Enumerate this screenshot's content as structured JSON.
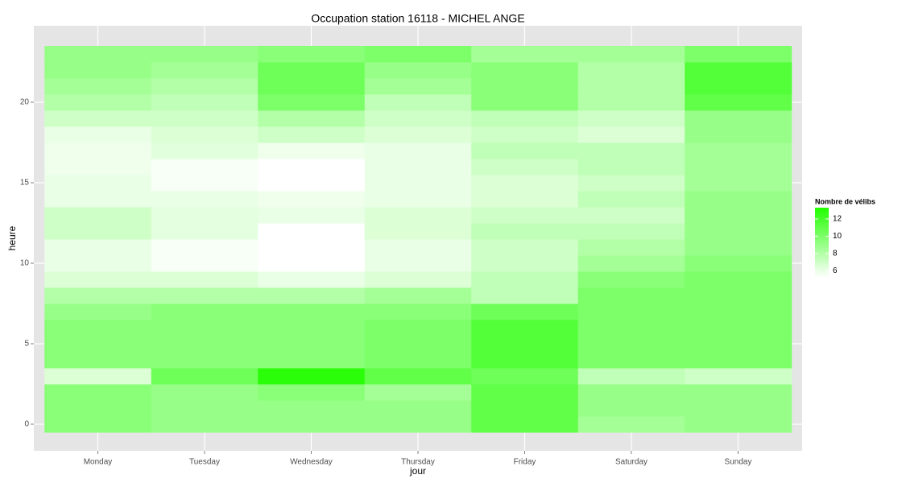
{
  "chart_data": {
    "type": "heatmap",
    "title": "Occupation station 16118 - MICHEL ANGE",
    "xlabel": "jour",
    "ylabel": "heure",
    "categories": [
      "Monday",
      "Tuesday",
      "Wednesday",
      "Thursday",
      "Friday",
      "Saturday",
      "Sunday"
    ],
    "y": [
      0,
      1,
      2,
      3,
      4,
      5,
      6,
      7,
      8,
      9,
      10,
      11,
      12,
      13,
      14,
      15,
      16,
      17,
      18,
      19,
      20,
      21,
      22,
      23
    ],
    "values": [
      [
        9.5,
        9.5,
        9.5,
        6.5,
        9.5,
        9.5,
        9.5,
        9,
        8,
        6.5,
        6,
        6,
        7,
        7,
        6,
        6,
        5.8,
        5.8,
        6,
        7,
        8,
        8.5,
        9,
        9
      ],
      [
        9,
        9,
        9,
        10.5,
        9.5,
        9.5,
        9.5,
        9.5,
        8,
        6.5,
        5.5,
        5.5,
        6.2,
        6.2,
        6,
        5.5,
        5.5,
        6.3,
        6.5,
        7,
        7.5,
        8,
        8.5,
        9
      ],
      [
        9,
        9,
        9.5,
        13,
        9.5,
        9.5,
        9.5,
        9.5,
        8,
        6,
        5,
        5,
        5,
        6,
        5.8,
        5.2,
        5.2,
        5.8,
        7,
        8,
        10,
        10.5,
        10.5,
        9.5
      ],
      [
        9,
        9,
        8.5,
        11,
        10,
        10,
        10,
        9.5,
        8.5,
        6.5,
        6,
        6,
        6.5,
        6.5,
        6,
        6,
        6,
        6,
        6.5,
        7,
        7.5,
        8.5,
        9,
        10
      ],
      [
        11,
        11,
        11,
        10.5,
        11.5,
        11.5,
        11.5,
        10.5,
        7.5,
        7.5,
        7,
        7,
        7.5,
        7,
        6.5,
        6.5,
        7,
        7.5,
        7,
        7.5,
        9.5,
        9.5,
        9.5,
        8.5
      ],
      [
        8.5,
        9,
        9,
        7.5,
        10,
        10,
        10,
        10,
        10,
        9.5,
        8.5,
        8,
        7.5,
        7,
        7.5,
        7,
        7.5,
        7.5,
        6.5,
        7,
        8,
        8,
        8,
        8.5
      ],
      [
        9,
        9,
        9,
        7,
        10,
        10,
        10,
        10,
        10,
        10,
        9.5,
        9,
        9,
        9,
        9,
        8.5,
        8.5,
        8.5,
        9,
        9,
        11,
        11.5,
        11.5,
        10
      ]
    ],
    "ylim": [
      -1.65,
      24.75
    ],
    "yticks": [
      0,
      5,
      10,
      15,
      20
    ],
    "grid": true,
    "colorbar": {
      "title": "Nombre de vélibs",
      "range": [
        5.2,
        13.3
      ],
      "ticks": [
        6,
        8,
        10,
        12
      ],
      "colors": [
        "#ffffff",
        "#22ff00"
      ]
    }
  }
}
